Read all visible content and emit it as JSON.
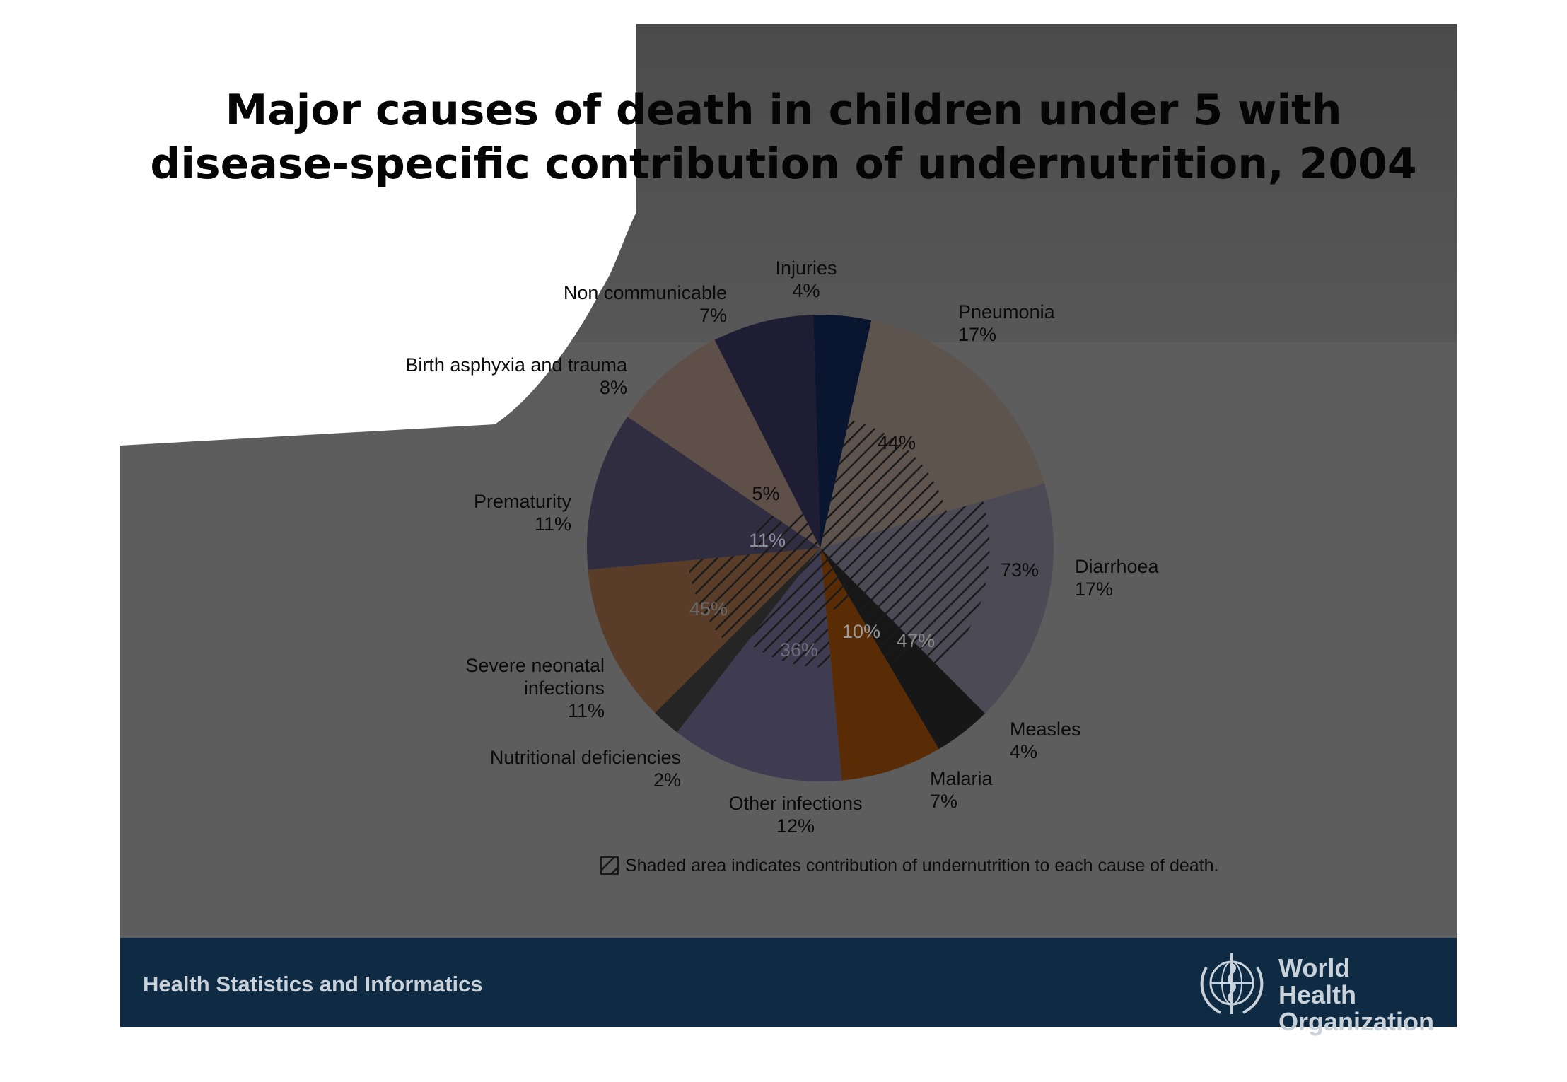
{
  "title_line1": "Major causes of death in children under 5 with",
  "title_line2": "disease-specific contribution of undernutrition, 2004",
  "footer": {
    "left_text": "Health Statistics and Informatics",
    "org_line1": "World Health",
    "org_line2": "Organization",
    "logo_icon": "who-emblem-icon"
  },
  "chart_data": {
    "type": "pie",
    "title": "",
    "slices": [
      {
        "name": "Injuries",
        "value": 4,
        "label": "4%",
        "color": "#0a1530",
        "undernutrition": null
      },
      {
        "name": "Pneumonia",
        "value": 17,
        "label": "17%",
        "color": "#5e544e",
        "undernutrition": "44%"
      },
      {
        "name": "Diarrhoea",
        "value": 17,
        "label": "17%",
        "color": "#4c4a55",
        "undernutrition": "73%"
      },
      {
        "name": "Measles",
        "value": 4,
        "label": "4%",
        "color": "#171717",
        "undernutrition": "47%"
      },
      {
        "name": "Malaria",
        "value": 7,
        "label": "7%",
        "color": "#5a2c06",
        "undernutrition": "10%"
      },
      {
        "name": "Other infections",
        "value": 12,
        "label": "12%",
        "color": "#3f3c52",
        "undernutrition": "36%"
      },
      {
        "name": "Nutritional deficiencies",
        "value": 2,
        "label": "2%",
        "color": "#252525",
        "undernutrition": null
      },
      {
        "name": "Severe neonatal infections",
        "value": 11,
        "label": "11%",
        "color": "#5a3d28",
        "undernutrition": "45%"
      },
      {
        "name": "Prematurity",
        "value": 11,
        "label": "11%",
        "color": "#302d41",
        "undernutrition": "11%"
      },
      {
        "name": "Birth asphyxia and trauma",
        "value": 8,
        "label": "8%",
        "color": "#5e5048",
        "undernutrition": "5%"
      },
      {
        "name": "Non communicable",
        "value": 7,
        "label": "7%",
        "color": "#1e1d33",
        "undernutrition": null
      }
    ],
    "legend_text": "Shaded area indicates contribution of undernutrition to each cause of death."
  }
}
